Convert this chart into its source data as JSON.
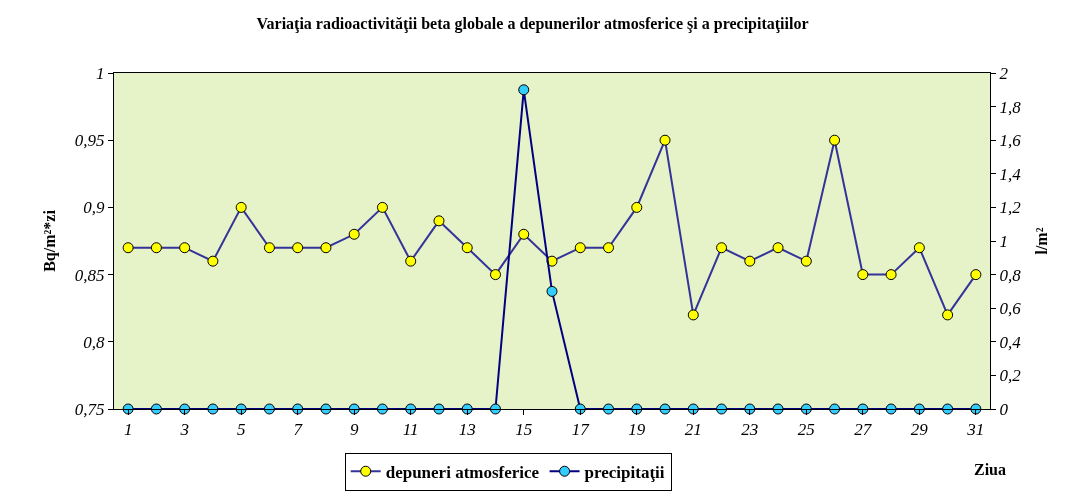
{
  "chart_data": {
    "type": "line",
    "title": "Variaţia radioactivităţii beta globale a depunerilor atmosferice şi a precipitaţiilor",
    "xlabel": "Ziua",
    "ylabel": "Bq/m²*zi",
    "y2label": "l/m²",
    "x": [
      1,
      2,
      3,
      4,
      5,
      6,
      7,
      8,
      9,
      10,
      11,
      12,
      13,
      14,
      15,
      16,
      17,
      18,
      19,
      20,
      21,
      22,
      23,
      24,
      25,
      26,
      27,
      28,
      29,
      30,
      31
    ],
    "series": [
      {
        "name": "depuneri atmosferice",
        "color": "#ffff00",
        "values": [
          0.87,
          0.87,
          0.87,
          0.86,
          0.9,
          0.87,
          0.87,
          0.87,
          0.88,
          0.9,
          0.86,
          0.89,
          0.87,
          0.85,
          0.88,
          0.86,
          0.87,
          0.87,
          0.9,
          0.95,
          0.82,
          0.87,
          0.86,
          0.87,
          0.86,
          0.95,
          0.85,
          0.85,
          0.87,
          0.82,
          0.85
        ]
      },
      {
        "name": "precipitaţii",
        "color": "#33ccff",
        "axis": "y2",
        "values": [
          0,
          0,
          0,
          0,
          0,
          0,
          0,
          0,
          0,
          0,
          0,
          0,
          0,
          0,
          1.9,
          0.7,
          0,
          0,
          0,
          0,
          0,
          0,
          0,
          0,
          0,
          0,
          0,
          0,
          0,
          0,
          0
        ]
      }
    ],
    "xlim": [
      0.5,
      31.5
    ],
    "xticks": [
      1,
      3,
      5,
      7,
      9,
      11,
      13,
      15,
      17,
      19,
      21,
      23,
      25,
      27,
      29,
      31
    ],
    "ylim": [
      0.75,
      1
    ],
    "yticks": [
      {
        "value": 0.75,
        "label": "0,75"
      },
      {
        "value": 0.8,
        "label": "0,8"
      },
      {
        "value": 0.85,
        "label": "0,85"
      },
      {
        "value": 0.9,
        "label": "0,9"
      },
      {
        "value": 0.95,
        "label": "0,95"
      },
      {
        "value": 1,
        "label": "1"
      }
    ],
    "y2lim": [
      0,
      2
    ],
    "y2ticks": [
      0,
      {
        "value": 0.2,
        "label": "0,2"
      },
      {
        "value": 0.4,
        "label": "0,4"
      },
      {
        "value": 0.6,
        "label": "0,6"
      },
      {
        "value": 0.8,
        "label": "0,8"
      },
      1,
      {
        "value": 1.2,
        "label": "1,2"
      },
      {
        "value": 1.4,
        "label": "1,4"
      },
      {
        "value": 1.6,
        "label": "1,6"
      },
      {
        "value": 1.8,
        "label": "1,8"
      },
      2
    ],
    "marker": "circle",
    "line_style": "solid",
    "grid": false,
    "legend": "bottom"
  }
}
